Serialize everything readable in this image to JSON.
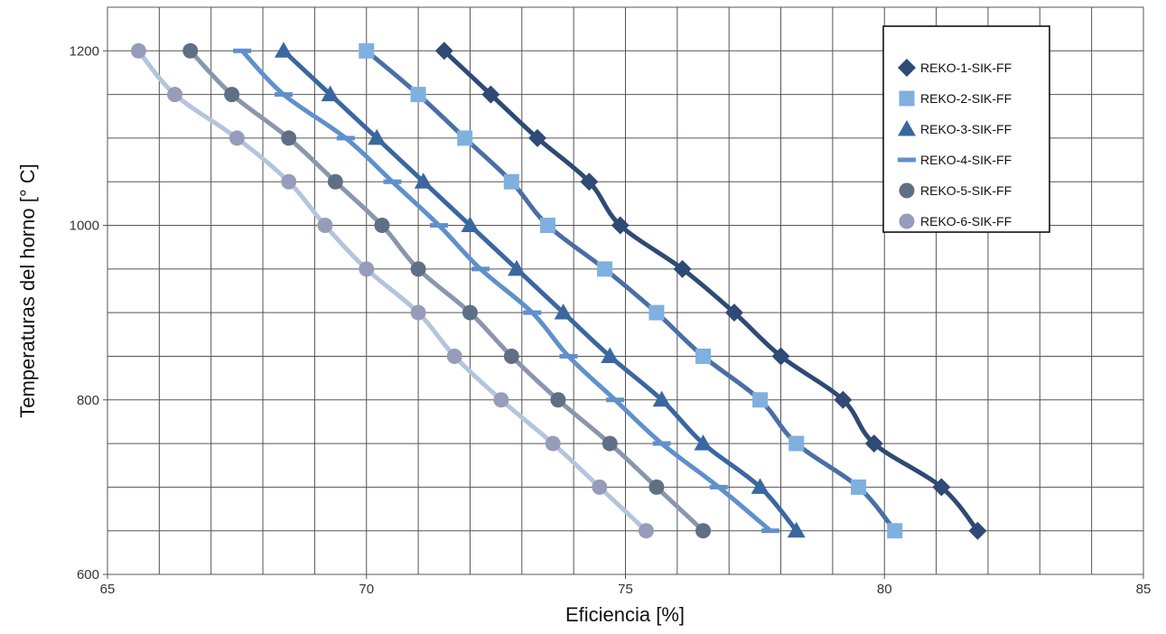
{
  "chart_data": {
    "type": "line",
    "title": "",
    "xlabel": "Eficiencia [%]",
    "ylabel": "Temperaturas del horno [° C]",
    "xlim": [
      65,
      85
    ],
    "ylim": [
      600,
      1250
    ],
    "x_ticks": [
      65,
      70,
      75,
      80,
      85
    ],
    "y_ticks": [
      600,
      800,
      1000,
      1200
    ],
    "x_minor_step": 1,
    "y_minor_step": 50,
    "grid": true,
    "legend_position": "top-right",
    "series": [
      {
        "name": "REKO-1-SIK-FF",
        "marker": "diamond",
        "color": "#2e4a75",
        "points": [
          [
            71.5,
            1200
          ],
          [
            72.4,
            1150
          ],
          [
            73.3,
            1100
          ],
          [
            74.3,
            1050
          ],
          [
            74.9,
            1000
          ],
          [
            76.1,
            950
          ],
          [
            77.1,
            900
          ],
          [
            78.0,
            850
          ],
          [
            79.2,
            800
          ],
          [
            79.8,
            750
          ],
          [
            81.1,
            700
          ],
          [
            81.8,
            650
          ]
        ]
      },
      {
        "name": "REKO-2-SIK-FF",
        "marker": "square",
        "color": "#4a6fa5",
        "marker_color": "#7fb0e0",
        "points": [
          [
            70.0,
            1200
          ],
          [
            71.0,
            1150
          ],
          [
            71.9,
            1100
          ],
          [
            72.8,
            1050
          ],
          [
            73.5,
            1000
          ],
          [
            74.6,
            950
          ],
          [
            75.6,
            900
          ],
          [
            76.5,
            850
          ],
          [
            77.6,
            800
          ],
          [
            78.3,
            750
          ],
          [
            79.5,
            700
          ],
          [
            80.2,
            650
          ]
        ]
      },
      {
        "name": "REKO-3-SIK-FF",
        "marker": "triangle",
        "color": "#3a67a0",
        "points": [
          [
            68.4,
            1200
          ],
          [
            69.3,
            1150
          ],
          [
            70.2,
            1100
          ],
          [
            71.1,
            1050
          ],
          [
            72.0,
            1000
          ],
          [
            72.9,
            950
          ],
          [
            73.8,
            900
          ],
          [
            74.7,
            850
          ],
          [
            75.7,
            800
          ],
          [
            76.5,
            750
          ],
          [
            77.6,
            700
          ],
          [
            78.3,
            650
          ]
        ]
      },
      {
        "name": "REKO-4-SIK-FF",
        "marker": "dash",
        "color": "#6090cc",
        "points": [
          [
            67.6,
            1200
          ],
          [
            68.4,
            1150
          ],
          [
            69.6,
            1100
          ],
          [
            70.5,
            1050
          ],
          [
            71.4,
            1000
          ],
          [
            72.2,
            950
          ],
          [
            73.2,
            900
          ],
          [
            73.9,
            850
          ],
          [
            74.8,
            800
          ],
          [
            75.7,
            750
          ],
          [
            76.8,
            700
          ],
          [
            77.8,
            650
          ]
        ]
      },
      {
        "name": "REKO-5-SIK-FF",
        "marker": "circle",
        "color": "#8a96ab",
        "marker_color": "#5f6f85",
        "points": [
          [
            66.6,
            1200
          ],
          [
            67.4,
            1150
          ],
          [
            68.5,
            1100
          ],
          [
            69.4,
            1050
          ],
          [
            70.3,
            1000
          ],
          [
            71.0,
            950
          ],
          [
            72.0,
            900
          ],
          [
            72.8,
            850
          ],
          [
            73.7,
            800
          ],
          [
            74.7,
            750
          ],
          [
            75.6,
            700
          ],
          [
            76.5,
            650
          ]
        ]
      },
      {
        "name": "REKO-6-SIK-FF",
        "marker": "circle",
        "color": "#b3c5de",
        "marker_color": "#979cba",
        "points": [
          [
            65.6,
            1200
          ],
          [
            66.3,
            1150
          ],
          [
            67.5,
            1100
          ],
          [
            68.5,
            1050
          ],
          [
            69.2,
            1000
          ],
          [
            70.0,
            950
          ],
          [
            71.0,
            900
          ],
          [
            71.7,
            850
          ],
          [
            72.6,
            800
          ],
          [
            73.6,
            750
          ],
          [
            74.5,
            700
          ],
          [
            75.4,
            650
          ]
        ]
      }
    ]
  }
}
